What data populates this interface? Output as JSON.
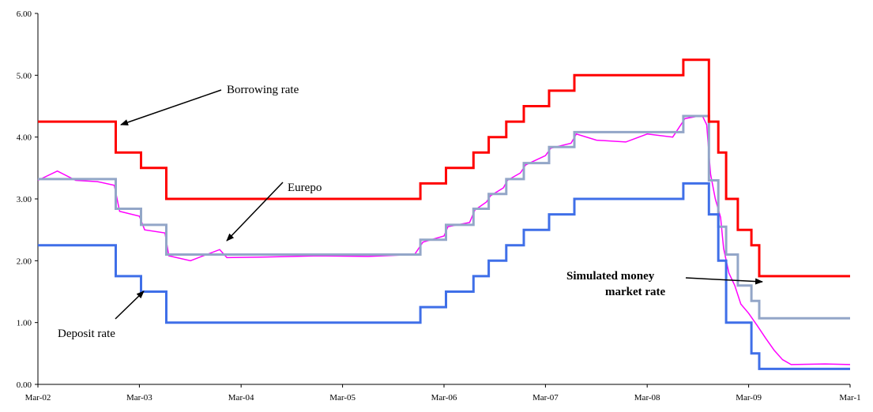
{
  "chart_data": {
    "type": "line",
    "title": "",
    "xlabel": "",
    "ylabel": "",
    "ylim": [
      0,
      6
    ],
    "yticks": [
      "0.00",
      "1.00",
      "2.00",
      "3.00",
      "4.00",
      "5.00",
      "6.00"
    ],
    "xlim": [
      "2002-03-01",
      "2010-03-01"
    ],
    "xticks": [
      "Mar-02",
      "Mar-03",
      "Mar-04",
      "Mar-05",
      "Mar-06",
      "Mar-07",
      "Mar-08",
      "Mar-09",
      "Mar-1"
    ],
    "grid": false,
    "legend": "none",
    "series": [
      {
        "name": "Borrowing rate",
        "color": "#ff0000",
        "step": true,
        "points": [
          [
            "2002-03-01",
            4.25
          ],
          [
            "2002-12-06",
            3.75
          ],
          [
            "2003-03-07",
            3.5
          ],
          [
            "2003-06-06",
            3.0
          ],
          [
            "2005-12-06",
            3.25
          ],
          [
            "2006-03-08",
            3.5
          ],
          [
            "2006-06-15",
            3.75
          ],
          [
            "2006-08-09",
            4.0
          ],
          [
            "2006-10-11",
            4.25
          ],
          [
            "2006-12-13",
            4.5
          ],
          [
            "2007-03-14",
            4.75
          ],
          [
            "2007-06-13",
            5.0
          ],
          [
            "2008-07-09",
            5.25
          ],
          [
            "2008-10-09",
            4.25
          ],
          [
            "2008-11-12",
            3.75
          ],
          [
            "2008-12-10",
            3.0
          ],
          [
            "2009-01-21",
            2.5
          ],
          [
            "2009-03-11",
            2.25
          ],
          [
            "2009-04-08",
            1.75
          ],
          [
            "2010-03-01",
            1.75
          ]
        ]
      },
      {
        "name": "Deposit rate",
        "color": "#3f6fe8",
        "step": true,
        "points": [
          [
            "2002-03-01",
            2.25
          ],
          [
            "2002-12-06",
            1.75
          ],
          [
            "2003-03-07",
            1.5
          ],
          [
            "2003-06-06",
            1.0
          ],
          [
            "2005-12-06",
            1.25
          ],
          [
            "2006-03-08",
            1.5
          ],
          [
            "2006-06-15",
            1.75
          ],
          [
            "2006-08-09",
            2.0
          ],
          [
            "2006-10-11",
            2.25
          ],
          [
            "2006-12-13",
            2.5
          ],
          [
            "2007-03-14",
            2.75
          ],
          [
            "2007-06-13",
            3.0
          ],
          [
            "2008-07-09",
            3.25
          ],
          [
            "2008-10-09",
            2.75
          ],
          [
            "2008-11-12",
            2.0
          ],
          [
            "2008-12-10",
            1.0
          ],
          [
            "2009-03-11",
            0.5
          ],
          [
            "2009-04-08",
            0.25
          ],
          [
            "2010-03-01",
            0.25
          ]
        ]
      },
      {
        "name": "Simulated money market rate",
        "color": "#93a6c8",
        "step": true,
        "points": [
          [
            "2002-03-01",
            3.32
          ],
          [
            "2002-12-06",
            2.84
          ],
          [
            "2003-03-07",
            2.58
          ],
          [
            "2003-06-06",
            2.1
          ],
          [
            "2005-12-06",
            2.34
          ],
          [
            "2006-03-08",
            2.58
          ],
          [
            "2006-06-15",
            2.84
          ],
          [
            "2006-08-09",
            3.08
          ],
          [
            "2006-10-11",
            3.32
          ],
          [
            "2006-12-13",
            3.58
          ],
          [
            "2007-03-14",
            3.84
          ],
          [
            "2007-06-13",
            4.08
          ],
          [
            "2008-07-09",
            4.34
          ],
          [
            "2008-10-09",
            3.3
          ],
          [
            "2008-11-12",
            2.55
          ],
          [
            "2008-12-10",
            2.1
          ],
          [
            "2009-01-21",
            1.6
          ],
          [
            "2009-03-11",
            1.35
          ],
          [
            "2009-04-08",
            1.07
          ],
          [
            "2010-03-01",
            1.07
          ]
        ]
      },
      {
        "name": "Eurepo",
        "color": "#ff00ff",
        "step": false,
        "points": [
          [
            "2002-03-01",
            3.3
          ],
          [
            "2002-05-10",
            3.45
          ],
          [
            "2002-07-15",
            3.3
          ],
          [
            "2002-10-01",
            3.28
          ],
          [
            "2002-12-01",
            3.22
          ],
          [
            "2002-12-20",
            2.8
          ],
          [
            "2003-03-01",
            2.72
          ],
          [
            "2003-03-20",
            2.5
          ],
          [
            "2003-06-01",
            2.45
          ],
          [
            "2003-06-15",
            2.08
          ],
          [
            "2003-09-01",
            2.0
          ],
          [
            "2003-12-15",
            2.18
          ],
          [
            "2004-01-10",
            2.05
          ],
          [
            "2004-06-01",
            2.06
          ],
          [
            "2004-12-01",
            2.08
          ],
          [
            "2005-06-01",
            2.07
          ],
          [
            "2005-11-15",
            2.1
          ],
          [
            "2005-12-15",
            2.3
          ],
          [
            "2006-03-01",
            2.4
          ],
          [
            "2006-03-15",
            2.55
          ],
          [
            "2006-06-01",
            2.62
          ],
          [
            "2006-06-20",
            2.82
          ],
          [
            "2006-08-01",
            2.95
          ],
          [
            "2006-08-15",
            3.05
          ],
          [
            "2006-10-01",
            3.18
          ],
          [
            "2006-10-15",
            3.3
          ],
          [
            "2006-12-01",
            3.42
          ],
          [
            "2006-12-20",
            3.55
          ],
          [
            "2007-03-01",
            3.7
          ],
          [
            "2007-03-20",
            3.82
          ],
          [
            "2007-06-01",
            3.9
          ],
          [
            "2007-06-20",
            4.05
          ],
          [
            "2007-09-01",
            3.95
          ],
          [
            "2007-12-15",
            3.92
          ],
          [
            "2008-03-01",
            4.05
          ],
          [
            "2008-06-01",
            4.0
          ],
          [
            "2008-07-15",
            4.3
          ],
          [
            "2008-09-15",
            4.35
          ],
          [
            "2008-10-01",
            4.2
          ],
          [
            "2008-10-15",
            3.4
          ],
          [
            "2008-11-01",
            3.0
          ],
          [
            "2008-11-20",
            2.7
          ],
          [
            "2008-12-01",
            2.2
          ],
          [
            "2008-12-20",
            1.8
          ],
          [
            "2009-01-10",
            1.6
          ],
          [
            "2009-02-01",
            1.3
          ],
          [
            "2009-03-01",
            1.15
          ],
          [
            "2009-04-01",
            0.95
          ],
          [
            "2009-05-01",
            0.75
          ],
          [
            "2009-06-01",
            0.55
          ],
          [
            "2009-07-01",
            0.4
          ],
          [
            "2009-08-01",
            0.32
          ],
          [
            "2009-12-01",
            0.33
          ],
          [
            "2010-03-01",
            0.32
          ]
        ]
      }
    ],
    "annotations": [
      {
        "text": "Borrowing rate",
        "bold": false
      },
      {
        "text": "Eurepo",
        "bold": false
      },
      {
        "text": "Deposit rate",
        "bold": false
      },
      {
        "text": "Simulated money",
        "bold": true
      },
      {
        "text": "market rate",
        "bold": true
      }
    ]
  }
}
